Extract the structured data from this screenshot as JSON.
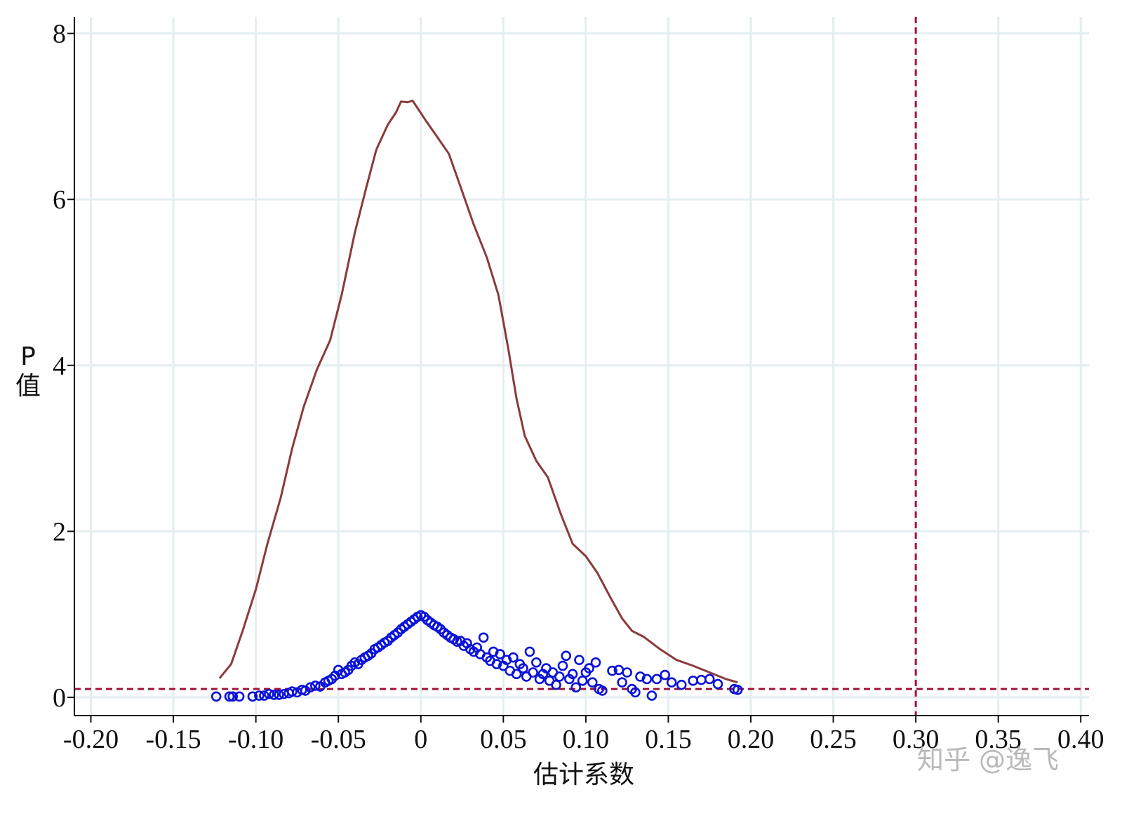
{
  "chart_data": {
    "type": "scatter",
    "xlabel": "估计系数",
    "ylabel_chars": [
      "P",
      "值"
    ],
    "xlim": [
      -0.21,
      0.405
    ],
    "ylim": [
      -0.22,
      8.2
    ],
    "grid": true,
    "x_ticks": [
      {
        "value": -0.2,
        "label": "-0.20"
      },
      {
        "value": -0.15,
        "label": "-0.15"
      },
      {
        "value": -0.1,
        "label": "-0.10"
      },
      {
        "value": -0.05,
        "label": "-0.05"
      },
      {
        "value": 0.0,
        "label": "0"
      },
      {
        "value": 0.05,
        "label": "0.05"
      },
      {
        "value": 0.1,
        "label": "0.10"
      },
      {
        "value": 0.15,
        "label": "0.15"
      },
      {
        "value": 0.2,
        "label": "0.20"
      },
      {
        "value": 0.25,
        "label": "0.25"
      },
      {
        "value": 0.3,
        "label": "0.30"
      },
      {
        "value": 0.35,
        "label": "0.35"
      },
      {
        "value": 0.4,
        "label": "0.40"
      }
    ],
    "y_ticks": [
      {
        "value": 0,
        "label": "0"
      },
      {
        "value": 2,
        "label": "2"
      },
      {
        "value": 4,
        "label": "4"
      },
      {
        "value": 6,
        "label": "6"
      },
      {
        "value": 8,
        "label": "8"
      }
    ],
    "reference_lines": [
      {
        "orientation": "horizontal",
        "value": 0.1,
        "color": "#a0173a",
        "style": "dashed"
      },
      {
        "orientation": "vertical",
        "value": 0.3,
        "color": "#a0173a",
        "style": "dashed"
      }
    ],
    "series": [
      {
        "kind": "density-line",
        "color": "#8b3a3a",
        "points": [
          [
            -0.122,
            0.23
          ],
          [
            -0.115,
            0.4
          ],
          [
            -0.108,
            0.8
          ],
          [
            -0.1,
            1.3
          ],
          [
            -0.093,
            1.85
          ],
          [
            -0.085,
            2.4
          ],
          [
            -0.078,
            3.0
          ],
          [
            -0.071,
            3.5
          ],
          [
            -0.063,
            3.95
          ],
          [
            -0.055,
            4.3
          ],
          [
            -0.048,
            4.85
          ],
          [
            -0.04,
            5.6
          ],
          [
            -0.033,
            6.15
          ],
          [
            -0.027,
            6.6
          ],
          [
            -0.02,
            6.9
          ],
          [
            -0.015,
            7.05
          ],
          [
            -0.012,
            7.18
          ],
          [
            -0.008,
            7.17
          ],
          [
            -0.005,
            7.19
          ],
          [
            -0.002,
            7.1
          ],
          [
            0.003,
            6.95
          ],
          [
            0.01,
            6.75
          ],
          [
            0.017,
            6.55
          ],
          [
            0.025,
            6.1
          ],
          [
            0.032,
            5.7
          ],
          [
            0.04,
            5.3
          ],
          [
            0.047,
            4.85
          ],
          [
            0.053,
            4.2
          ],
          [
            0.058,
            3.6
          ],
          [
            0.063,
            3.15
          ],
          [
            0.07,
            2.85
          ],
          [
            0.077,
            2.65
          ],
          [
            0.085,
            2.2
          ],
          [
            0.092,
            1.85
          ],
          [
            0.1,
            1.7
          ],
          [
            0.107,
            1.5
          ],
          [
            0.115,
            1.2
          ],
          [
            0.122,
            0.95
          ],
          [
            0.128,
            0.8
          ],
          [
            0.135,
            0.73
          ],
          [
            0.145,
            0.58
          ],
          [
            0.155,
            0.45
          ],
          [
            0.165,
            0.38
          ],
          [
            0.175,
            0.3
          ],
          [
            0.185,
            0.22
          ],
          [
            0.192,
            0.18
          ]
        ]
      },
      {
        "kind": "scatter",
        "color": "#0b12d8",
        "points": [
          [
            -0.124,
            0.01
          ],
          [
            -0.116,
            0.01
          ],
          [
            -0.114,
            0.01
          ],
          [
            -0.11,
            0.01
          ],
          [
            -0.102,
            0.01
          ],
          [
            -0.098,
            0.02
          ],
          [
            -0.095,
            0.02
          ],
          [
            -0.092,
            0.04
          ],
          [
            -0.089,
            0.03
          ],
          [
            -0.086,
            0.03
          ],
          [
            -0.083,
            0.04
          ],
          [
            -0.08,
            0.05
          ],
          [
            -0.078,
            0.07
          ],
          [
            -0.075,
            0.06
          ],
          [
            -0.072,
            0.09
          ],
          [
            -0.07,
            0.08
          ],
          [
            -0.067,
            0.12
          ],
          [
            -0.064,
            0.14
          ],
          [
            -0.061,
            0.13
          ],
          [
            -0.058,
            0.18
          ],
          [
            -0.056,
            0.2
          ],
          [
            -0.054,
            0.22
          ],
          [
            -0.052,
            0.26
          ],
          [
            -0.05,
            0.33
          ],
          [
            -0.048,
            0.28
          ],
          [
            -0.046,
            0.3
          ],
          [
            -0.044,
            0.33
          ],
          [
            -0.042,
            0.38
          ],
          [
            -0.04,
            0.42
          ],
          [
            -0.038,
            0.4
          ],
          [
            -0.036,
            0.45
          ],
          [
            -0.034,
            0.48
          ],
          [
            -0.032,
            0.5
          ],
          [
            -0.03,
            0.53
          ],
          [
            -0.028,
            0.58
          ],
          [
            -0.026,
            0.6
          ],
          [
            -0.024,
            0.63
          ],
          [
            -0.022,
            0.66
          ],
          [
            -0.02,
            0.68
          ],
          [
            -0.018,
            0.72
          ],
          [
            -0.016,
            0.75
          ],
          [
            -0.014,
            0.78
          ],
          [
            -0.012,
            0.82
          ],
          [
            -0.01,
            0.85
          ],
          [
            -0.008,
            0.88
          ],
          [
            -0.006,
            0.91
          ],
          [
            -0.004,
            0.94
          ],
          [
            -0.002,
            0.97
          ],
          [
            0.0,
            0.99
          ],
          [
            0.002,
            0.97
          ],
          [
            0.004,
            0.93
          ],
          [
            0.006,
            0.9
          ],
          [
            0.008,
            0.87
          ],
          [
            0.01,
            0.85
          ],
          [
            0.012,
            0.82
          ],
          [
            0.014,
            0.78
          ],
          [
            0.016,
            0.75
          ],
          [
            0.018,
            0.72
          ],
          [
            0.02,
            0.7
          ],
          [
            0.022,
            0.67
          ],
          [
            0.024,
            0.68
          ],
          [
            0.026,
            0.62
          ],
          [
            0.028,
            0.65
          ],
          [
            0.03,
            0.58
          ],
          [
            0.032,
            0.55
          ],
          [
            0.034,
            0.6
          ],
          [
            0.036,
            0.52
          ],
          [
            0.038,
            0.72
          ],
          [
            0.04,
            0.48
          ],
          [
            0.042,
            0.44
          ],
          [
            0.044,
            0.55
          ],
          [
            0.046,
            0.4
          ],
          [
            0.048,
            0.52
          ],
          [
            0.05,
            0.38
          ],
          [
            0.052,
            0.45
          ],
          [
            0.054,
            0.32
          ],
          [
            0.056,
            0.48
          ],
          [
            0.058,
            0.28
          ],
          [
            0.06,
            0.4
          ],
          [
            0.062,
            0.35
          ],
          [
            0.064,
            0.25
          ],
          [
            0.066,
            0.55
          ],
          [
            0.068,
            0.3
          ],
          [
            0.07,
            0.42
          ],
          [
            0.072,
            0.22
          ],
          [
            0.074,
            0.28
          ],
          [
            0.076,
            0.35
          ],
          [
            0.078,
            0.2
          ],
          [
            0.08,
            0.3
          ],
          [
            0.082,
            0.15
          ],
          [
            0.084,
            0.25
          ],
          [
            0.086,
            0.38
          ],
          [
            0.088,
            0.5
          ],
          [
            0.09,
            0.22
          ],
          [
            0.092,
            0.28
          ],
          [
            0.094,
            0.12
          ],
          [
            0.096,
            0.45
          ],
          [
            0.098,
            0.2
          ],
          [
            0.1,
            0.3
          ],
          [
            0.102,
            0.35
          ],
          [
            0.104,
            0.18
          ],
          [
            0.106,
            0.42
          ],
          [
            0.108,
            0.1
          ],
          [
            0.11,
            0.08
          ],
          [
            0.116,
            0.32
          ],
          [
            0.12,
            0.33
          ],
          [
            0.122,
            0.18
          ],
          [
            0.125,
            0.3
          ],
          [
            0.128,
            0.1
          ],
          [
            0.13,
            0.06
          ],
          [
            0.133,
            0.25
          ],
          [
            0.137,
            0.22
          ],
          [
            0.14,
            0.02
          ],
          [
            0.143,
            0.22
          ],
          [
            0.148,
            0.27
          ],
          [
            0.152,
            0.18
          ],
          [
            0.158,
            0.15
          ],
          [
            0.165,
            0.2
          ],
          [
            0.17,
            0.21
          ],
          [
            0.175,
            0.22
          ],
          [
            0.18,
            0.16
          ],
          [
            0.19,
            0.1
          ],
          [
            0.192,
            0.09
          ]
        ]
      }
    ]
  },
  "watermark": "知乎 @逸飞"
}
